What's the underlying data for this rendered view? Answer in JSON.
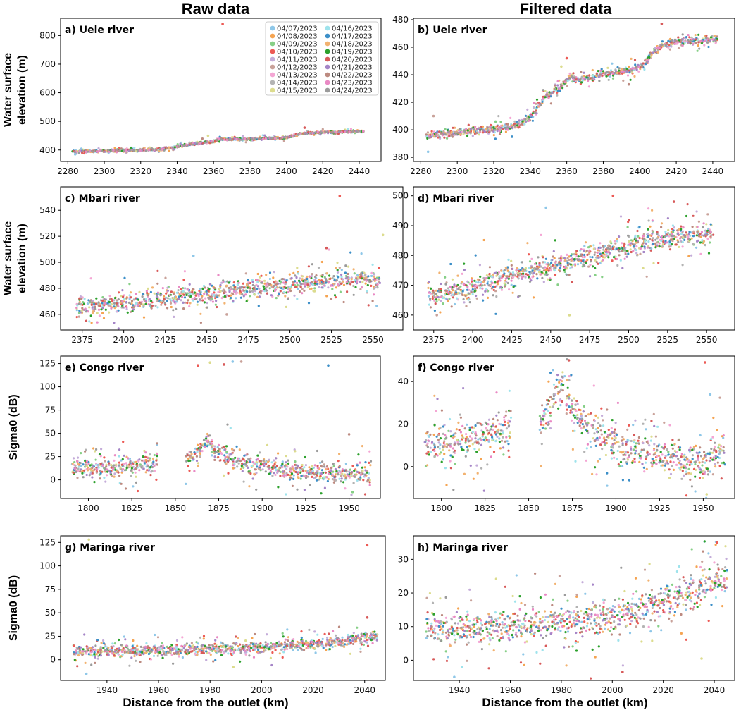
{
  "figure": {
    "column_titles": [
      "Raw data",
      "Filtered data"
    ],
    "x_axis_label": "Distance from the outlet (km)"
  },
  "legend": {
    "dates": [
      "04/07/2023",
      "04/08/2023",
      "04/09/2023",
      "04/10/2023",
      "04/11/2023",
      "04/12/2023",
      "04/13/2023",
      "04/14/2023",
      "04/15/2023",
      "04/16/2023",
      "04/17/2023",
      "04/18/2023",
      "04/19/2023",
      "04/20/2023",
      "04/21/2023",
      "04/22/2023",
      "04/23/2023",
      "04/24/2023"
    ],
    "colors": [
      "#8ec7e8",
      "#f5a452",
      "#86cf86",
      "#ec5a55",
      "#c4acd9",
      "#c9a29a",
      "#f4a6d4",
      "#b3b3b3",
      "#dcdc8e",
      "#9ee3ec",
      "#3c8fc8",
      "#f2b270",
      "#2ca02c",
      "#d75a5a",
      "#a585c7",
      "#bc8a80",
      "#e989c4",
      "#9b9b9b"
    ]
  },
  "chart_data": [
    {
      "id": "a",
      "type": "scatter",
      "title": "a) Uele river",
      "ylabel": "Water surface\nelevation (m)",
      "xlim": [
        2276,
        2452
      ],
      "ylim": [
        360,
        860
      ],
      "xticks": [
        2280,
        2300,
        2320,
        2340,
        2360,
        2380,
        2400,
        2420,
        2440
      ],
      "yticks": [
        400,
        500,
        600,
        700,
        800
      ],
      "profile": [
        [
          2284,
          395
        ],
        [
          2300,
          397
        ],
        [
          2320,
          400
        ],
        [
          2330,
          402
        ],
        [
          2338,
          408
        ],
        [
          2345,
          418
        ],
        [
          2350,
          422
        ],
        [
          2356,
          428
        ],
        [
          2360,
          430
        ],
        [
          2363,
          438
        ],
        [
          2370,
          437
        ],
        [
          2380,
          439
        ],
        [
          2400,
          443
        ],
        [
          2408,
          458
        ],
        [
          2420,
          462
        ],
        [
          2444,
          466
        ]
      ],
      "spread": 3,
      "outliers": [
        [
          2365,
          840
        ],
        [
          2357,
          450
        ],
        [
          2410,
          478
        ],
        [
          2284,
          385
        ]
      ],
      "legend": true
    },
    {
      "id": "b",
      "type": "scatter",
      "title": "b) Uele river",
      "ylabel": "",
      "xlim": [
        2276,
        2452
      ],
      "ylim": [
        377,
        481
      ],
      "xticks": [
        2280,
        2300,
        2320,
        2340,
        2360,
        2380,
        2400,
        2420,
        2440
      ],
      "yticks": [
        380,
        400,
        420,
        440,
        460,
        480
      ],
      "profile": [
        [
          2284,
          396
        ],
        [
          2300,
          398
        ],
        [
          2315,
          400
        ],
        [
          2320,
          401
        ],
        [
          2330,
          402
        ],
        [
          2336,
          405
        ],
        [
          2340,
          410
        ],
        [
          2344,
          416
        ],
        [
          2348,
          424
        ],
        [
          2352,
          427
        ],
        [
          2356,
          430
        ],
        [
          2362,
          439
        ],
        [
          2366,
          436
        ],
        [
          2375,
          438
        ],
        [
          2380,
          441
        ],
        [
          2395,
          443
        ],
        [
          2402,
          447
        ],
        [
          2408,
          458
        ],
        [
          2414,
          462
        ],
        [
          2420,
          464
        ],
        [
          2444,
          466
        ]
      ],
      "spread": 2,
      "outliers": [
        [
          2360,
          452
        ],
        [
          2357,
          446
        ],
        [
          2412,
          477
        ],
        [
          2284,
          384
        ],
        [
          2287,
          410
        ],
        [
          2330,
          395
        ],
        [
          2394,
          433
        ],
        [
          2321,
          406
        ]
      ],
      "legend": false
    },
    {
      "id": "c",
      "type": "scatter",
      "title": "c) Mbari river",
      "ylabel": "Water surface\nelevation (m)",
      "xlim": [
        2362,
        2568
      ],
      "ylim": [
        448,
        558
      ],
      "xticks": [
        2375,
        2400,
        2425,
        2450,
        2475,
        2500,
        2525,
        2550
      ],
      "yticks": [
        460,
        480,
        500,
        520,
        540
      ],
      "profile": [
        [
          2373,
          466
        ],
        [
          2400,
          469
        ],
        [
          2425,
          473
        ],
        [
          2450,
          476
        ],
        [
          2475,
          480
        ],
        [
          2500,
          483
        ],
        [
          2525,
          486
        ],
        [
          2556,
          488
        ]
      ],
      "spread": 6,
      "outliers": [
        [
          2530,
          551
        ],
        [
          2556,
          521
        ],
        [
          2522,
          511
        ],
        [
          2442,
          505
        ],
        [
          2462,
          460
        ]
      ],
      "legend": false
    },
    {
      "id": "d",
      "type": "scatter",
      "title": "d) Mbari river",
      "ylabel": "",
      "xlim": [
        2362,
        2568
      ],
      "ylim": [
        455,
        503
      ],
      "xticks": [
        2375,
        2400,
        2425,
        2450,
        2475,
        2500,
        2525,
        2550
      ],
      "yticks": [
        460,
        470,
        480,
        490,
        500
      ],
      "profile": [
        [
          2373,
          467
        ],
        [
          2400,
          469
        ],
        [
          2425,
          473
        ],
        [
          2450,
          476
        ],
        [
          2475,
          480
        ],
        [
          2500,
          483
        ],
        [
          2525,
          486
        ],
        [
          2556,
          488
        ]
      ],
      "spread": 3,
      "outliers": [
        [
          2490,
          500
        ],
        [
          2462,
          460
        ],
        [
          2529,
          498
        ],
        [
          2447,
          496
        ],
        [
          2377,
          460
        ]
      ],
      "legend": false
    },
    {
      "id": "e",
      "type": "scatter",
      "title": "e) Congo river",
      "ylabel": "Sigma0 (dB)",
      "xlim": [
        1784,
        1968
      ],
      "ylim": [
        -20,
        133
      ],
      "xticks": [
        1800,
        1825,
        1850,
        1875,
        1900,
        1925,
        1950
      ],
      "yticks": [
        0,
        25,
        50,
        75,
        100,
        125
      ],
      "profile": [
        [
          1792,
          12
        ],
        [
          1815,
          14
        ],
        [
          1840,
          18
        ],
        [
          1841,
          null
        ],
        [
          1855,
          null
        ],
        [
          1856,
          22
        ],
        [
          1862,
          28
        ],
        [
          1869,
          40
        ],
        [
          1876,
          28
        ],
        [
          1890,
          18
        ],
        [
          1910,
          12
        ],
        [
          1930,
          8
        ],
        [
          1950,
          6
        ],
        [
          1961,
          8
        ]
      ],
      "spread": 8,
      "outliers": [
        [
          1863,
          123
        ],
        [
          1870,
          126
        ],
        [
          1878,
          124
        ],
        [
          1883,
          127
        ],
        [
          1888,
          127
        ],
        [
          1938,
          123
        ],
        [
          1950,
          49
        ],
        [
          1952,
          -13
        ]
      ],
      "legend": false
    },
    {
      "id": "f",
      "type": "scatter",
      "title": "f) Congo river",
      "ylabel": "",
      "xlim": [
        1784,
        1968
      ],
      "ylim": [
        -15,
        52
      ],
      "xticks": [
        1800,
        1825,
        1850,
        1875,
        1900,
        1925,
        1950
      ],
      "yticks": [
        0,
        20,
        40
      ],
      "profile": [
        [
          1792,
          10
        ],
        [
          1815,
          12
        ],
        [
          1840,
          18
        ],
        [
          1841,
          null
        ],
        [
          1855,
          null
        ],
        [
          1856,
          20
        ],
        [
          1862,
          28
        ],
        [
          1869,
          40
        ],
        [
          1876,
          26
        ],
        [
          1890,
          14
        ],
        [
          1910,
          8
        ],
        [
          1930,
          4
        ],
        [
          1950,
          2
        ],
        [
          1961,
          8
        ]
      ],
      "spread": 7,
      "outliers": [
        [
          1951,
          49
        ],
        [
          1952,
          -13
        ],
        [
          1873,
          50
        ],
        [
          1954,
          34
        ]
      ],
      "legend": false
    },
    {
      "id": "g",
      "type": "scatter",
      "title": "g) Maringa river",
      "ylabel": "Sigma0 (dB)",
      "xlim": [
        1922,
        2048
      ],
      "ylim": [
        -22,
        132
      ],
      "xticks": [
        1940,
        1960,
        1980,
        2000,
        2020,
        2040
      ],
      "yticks": [
        0,
        25,
        50,
        75,
        100,
        125
      ],
      "profile": [
        [
          1928,
          9
        ],
        [
          1960,
          10
        ],
        [
          1990,
          12
        ],
        [
          2010,
          15
        ],
        [
          2030,
          19
        ],
        [
          2044,
          25
        ]
      ],
      "spread": 5,
      "outliers": [
        [
          2041,
          122
        ],
        [
          1933,
          128
        ],
        [
          2041,
          45
        ],
        [
          1932,
          -15
        ]
      ],
      "legend": false
    },
    {
      "id": "h",
      "type": "scatter",
      "title": "h) Maringa river",
      "ylabel": "",
      "xlim": [
        1922,
        2048
      ],
      "ylim": [
        -6,
        37
      ],
      "xticks": [
        1940,
        1960,
        1980,
        2000,
        2020,
        2040
      ],
      "yticks": [
        0,
        10,
        20,
        30
      ],
      "profile": [
        [
          1928,
          9
        ],
        [
          1960,
          10
        ],
        [
          1990,
          12
        ],
        [
          2010,
          15
        ],
        [
          2030,
          20
        ],
        [
          2044,
          25
        ]
      ],
      "spread": 4,
      "outliers": [
        [
          2041,
          35
        ],
        [
          2035,
          0.5
        ],
        [
          2004,
          -3.5
        ],
        [
          1938,
          -5
        ]
      ],
      "legend": false
    }
  ]
}
